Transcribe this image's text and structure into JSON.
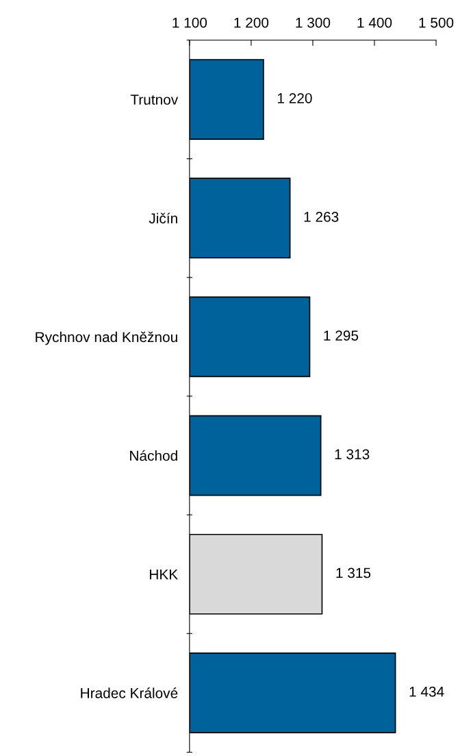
{
  "chart_data": {
    "type": "bar",
    "orientation": "horizontal",
    "categories": [
      "Trutnov",
      "Jičín",
      "Rychnov nad Kněžnou",
      "Náchod",
      "HKK",
      "Hradec Králové"
    ],
    "values": [
      1220,
      1263,
      1295,
      1313,
      1315,
      1434
    ],
    "colors": [
      "#00629b",
      "#00629b",
      "#00629b",
      "#00629b",
      "#d9d9d9",
      "#00629b"
    ],
    "value_labels": [
      "1 220",
      "1 263",
      "1 295",
      "1 313",
      "1 315",
      "1 434"
    ],
    "xlim": [
      1100,
      1500
    ],
    "xticks": [
      {
        "value": 1100,
        "label": "1 100"
      },
      {
        "value": 1200,
        "label": "1 200"
      },
      {
        "value": 1300,
        "label": "1 300"
      },
      {
        "value": 1400,
        "label": "1 400"
      },
      {
        "value": 1500,
        "label": "1 500"
      }
    ],
    "grid": false,
    "legend": false
  }
}
